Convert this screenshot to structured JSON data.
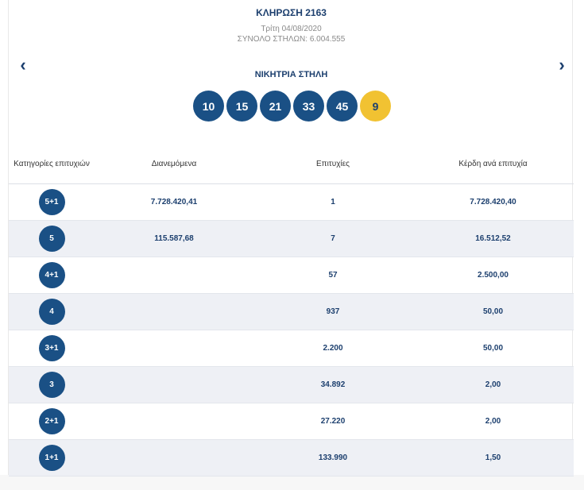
{
  "draw": {
    "title": "ΚΛΗΡΩΣΗ 2163",
    "date": "Τρίτη 04/08/2020",
    "total_columns": "ΣΥΝΟΛΟ ΣΤΗΛΩΝ: 6.004.555"
  },
  "nav": {
    "prev_icon": "‹",
    "next_icon": "›"
  },
  "winning": {
    "label": "ΝΙΚΗΤΡΙΑ ΣΤΗΛΗ",
    "numbers": [
      "10",
      "15",
      "21",
      "33",
      "45"
    ],
    "joker": "9",
    "colors": {
      "ball": "#1a5085",
      "joker": "#f1c232"
    }
  },
  "table": {
    "headers": {
      "category": "Κατηγορίες επιτυχιών",
      "distributed": "Διανεμόμενα",
      "winners": "Επιτυχίες",
      "prize": "Κέρδη ανά επιτυχία"
    },
    "rows": [
      {
        "category": "5+1",
        "distributed": "7.728.420,41",
        "winners": "1",
        "prize": "7.728.420,40"
      },
      {
        "category": "5",
        "distributed": "115.587,68",
        "winners": "7",
        "prize": "16.512,52"
      },
      {
        "category": "4+1",
        "distributed": "",
        "winners": "57",
        "prize": "2.500,00"
      },
      {
        "category": "4",
        "distributed": "",
        "winners": "937",
        "prize": "50,00"
      },
      {
        "category": "3+1",
        "distributed": "",
        "winners": "2.200",
        "prize": "50,00"
      },
      {
        "category": "3",
        "distributed": "",
        "winners": "34.892",
        "prize": "2,00"
      },
      {
        "category": "2+1",
        "distributed": "",
        "winners": "27.220",
        "prize": "2,00"
      },
      {
        "category": "1+1",
        "distributed": "",
        "winners": "133.990",
        "prize": "1,50"
      }
    ]
  }
}
